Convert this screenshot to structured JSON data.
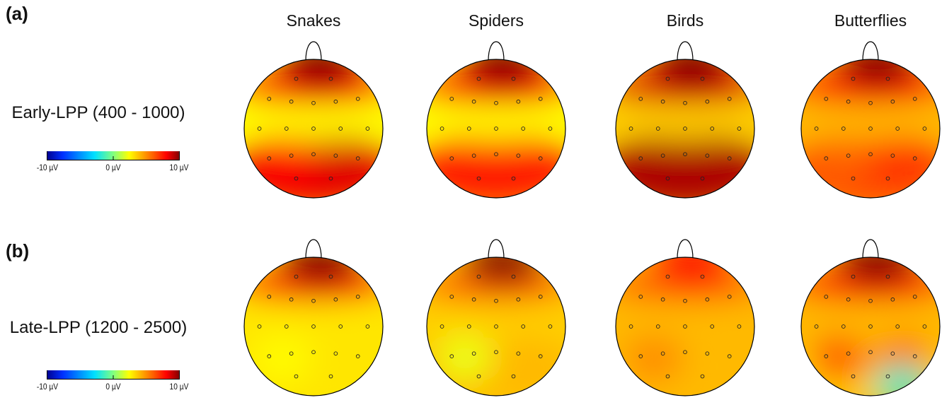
{
  "panels": [
    {
      "label": "(a)",
      "row_title": "Early-LPP (400 - 1000)",
      "colorbar": {
        "min_label": "-10 µV",
        "mid_label": "0 µV",
        "max_label": "10 µV"
      },
      "maps": [
        {
          "condition": "Snakes",
          "frontal": 10,
          "frontal_mid": 7,
          "central": 1.5,
          "parietal": 7.5,
          "left_post": 7,
          "right_post": 8
        },
        {
          "condition": "Spiders",
          "frontal": 10,
          "frontal_mid": 7,
          "central": 1.5,
          "parietal": 6.5,
          "left_post": 6.5,
          "right_post": 6.5
        },
        {
          "condition": "Birds",
          "frontal": 10,
          "frontal_mid": 8,
          "central": 2.5,
          "parietal": 9,
          "left_post": 9,
          "right_post": 9
        },
        {
          "condition": "Butterflies",
          "frontal": 10,
          "frontal_mid": 6.5,
          "central": 3,
          "parietal": 5.5,
          "left_post": 5,
          "right_post": 6
        }
      ]
    },
    {
      "label": "(b)",
      "row_title": "Late-LPP (1200 - 2500)",
      "colorbar": {
        "min_label": "-10 µV",
        "mid_label": "0 µV",
        "max_label": "10 µV"
      },
      "maps": [
        {
          "condition": "Snakes",
          "frontal": 10,
          "frontal_mid": 6,
          "central": 2,
          "parietal": 2,
          "left_post": 1.5,
          "right_post": 2
        },
        {
          "condition": "Spiders",
          "frontal": 10,
          "frontal_mid": 5,
          "central": 2.5,
          "parietal": 3,
          "left_post": 1,
          "right_post": 3
        },
        {
          "condition": "Birds",
          "frontal": 7,
          "frontal_mid": 5,
          "central": 3,
          "parietal": 3,
          "left_post": 4,
          "right_post": 3
        },
        {
          "condition": "Butterflies",
          "frontal": 10,
          "frontal_mid": 6,
          "central": 3,
          "parietal": 2.5,
          "left_post": 5,
          "right_post": 4.5,
          "bottom_right": -3
        }
      ]
    }
  ],
  "conditions": [
    "Snakes",
    "Spiders",
    "Birds",
    "Butterflies"
  ],
  "scale": {
    "min": -10,
    "max": 10,
    "colors": [
      "#00008f",
      "#0050ff",
      "#00d8ff",
      "#7fff7f",
      "#ffff00",
      "#ff8000",
      "#ff0000",
      "#800000"
    ]
  }
}
